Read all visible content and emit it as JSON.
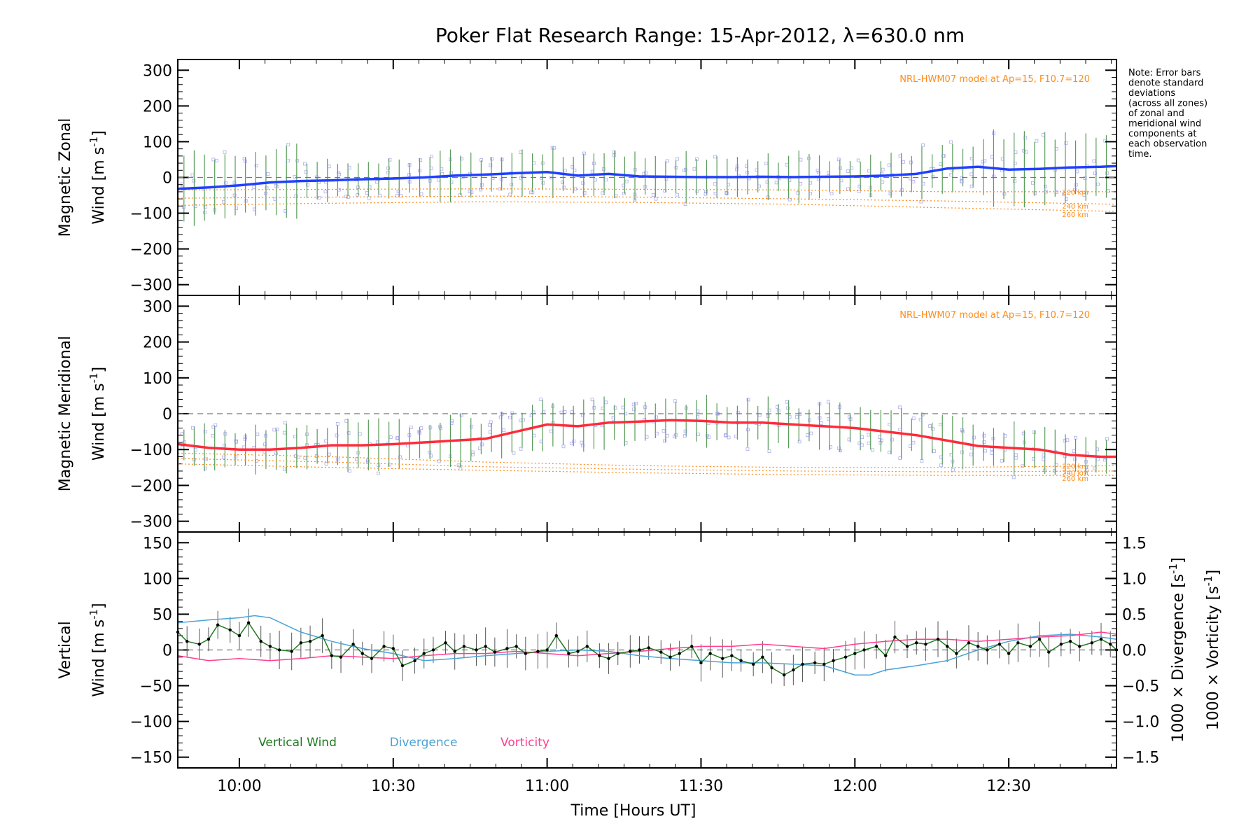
{
  "title": "Poker Flat Research Range: 15-Apr-2012, λ=630.0 nm",
  "note_lines": [
    "Note: Error bars",
    "denote standard",
    "deviations",
    "(across all zones)",
    "of zonal and",
    "meridional wind",
    "components at",
    "each observation",
    "time."
  ],
  "colors": {
    "zonal": "#1f3fff",
    "meridional": "#ff2a3a",
    "vertical": "#1e7a1e",
    "divergence": "#4aa3d6",
    "vorticity": "#ff3f8e",
    "model": "#ff8c1a",
    "zones": "#8a8ae6",
    "errorbar": "#555555"
  },
  "x_axis": {
    "label": "Time [Hours UT]",
    "range_hours": [
      9.8,
      12.85
    ],
    "ticks": [
      10.0,
      10.5,
      11.0,
      11.5,
      12.0,
      12.5
    ],
    "tick_labels": [
      "10:00",
      "10:30",
      "11:00",
      "11:30",
      "12:00",
      "12:30"
    ]
  },
  "panels": {
    "zonal": {
      "ylabel_1": "Magnetic Zonal",
      "ylabel_2": "Wind [m s",
      "ylabel_sup": "-1",
      "ylabel_close": "]",
      "ylim": [
        -330,
        330
      ],
      "ticks": [
        -300,
        -200,
        -100,
        0,
        100,
        200,
        300
      ],
      "tick_labels": [
        "−300",
        "−200",
        "−100",
        "0",
        "100",
        "200",
        "300"
      ],
      "model_note": "NRL-HWM07 model at Ap=15, F10.7=120",
      "altitude_labels": [
        "220 km",
        "240 km",
        "260 km"
      ]
    },
    "meridional": {
      "ylabel_1": "Magnetic Meridional",
      "ylabel_2": "Wind [m s",
      "ylabel_sup": "-1",
      "ylabel_close": "]",
      "ylim": [
        -330,
        330
      ],
      "ticks": [
        -300,
        -200,
        -100,
        0,
        100,
        200,
        300
      ],
      "tick_labels": [
        "−300",
        "−200",
        "−100",
        "0",
        "100",
        "200",
        "300"
      ],
      "model_note": "NRL-HWM07 model at Ap=15, F10.7=120",
      "altitude_labels": [
        "220 km",
        "240 km",
        "260 km"
      ]
    },
    "vertical": {
      "ylabel_1": "Vertical",
      "ylabel_2": "Wind [m s",
      "ylabel_sup": "-1",
      "ylabel_close": "]",
      "ylim": [
        -165,
        165
      ],
      "ticks": [
        -150,
        -100,
        -50,
        0,
        50,
        100,
        150
      ],
      "tick_labels": [
        "−150",
        "−100",
        "−50",
        "0",
        "50",
        "100",
        "150"
      ],
      "right_ylim": [
        -1.65,
        1.65
      ],
      "right_ticks": [
        -1.5,
        -1.0,
        -0.5,
        0.0,
        0.5,
        1.0,
        1.5
      ],
      "right_tick_labels": [
        "−1.5",
        "−1.0",
        "−0.5",
        "0.0",
        "0.5",
        "1.0",
        "1.5"
      ],
      "right_label_div": "1000 × Divergence [s",
      "right_label_vort": "1000 × Vorticity [s",
      "right_label_sup": "-1",
      "right_label_close": "]",
      "legend": [
        "Vertical Wind",
        "Divergence",
        "Vorticity"
      ]
    }
  },
  "chart_data": [
    {
      "type": "line",
      "panel": "zonal",
      "title": "Poker Flat Research Range: 15-Apr-2012, λ=630.0 nm",
      "ylabel": "Magnetic Zonal Wind [m s-1]",
      "xlabel": "",
      "ylim": [
        -330,
        330
      ],
      "series": [
        {
          "kind": "wind",
          "x": [
            9.8,
            9.9,
            10.0,
            10.1,
            10.2,
            10.3,
            10.4,
            10.5,
            10.6,
            10.7,
            10.8,
            10.9,
            11.0,
            11.1,
            11.2,
            11.3,
            11.4,
            11.5,
            11.6,
            11.7,
            11.8,
            11.9,
            12.0,
            12.1,
            12.2,
            12.3,
            12.4,
            12.5,
            12.6,
            12.7,
            12.8,
            12.85
          ],
          "y": [
            -32,
            -28,
            -22,
            -14,
            -10,
            -8,
            -5,
            -3,
            0,
            5,
            8,
            12,
            15,
            5,
            10,
            3,
            2,
            1,
            1,
            2,
            1,
            2,
            3,
            5,
            10,
            25,
            30,
            22,
            24,
            28,
            30,
            32
          ]
        },
        {
          "kind": "model",
          "name": "220 km",
          "x": [
            9.8,
            10.3,
            10.8,
            11.3,
            11.8,
            12.3,
            12.85
          ],
          "y": [
            -35,
            -33,
            -32,
            -33,
            -35,
            -40,
            -40
          ]
        },
        {
          "kind": "model",
          "name": "240 km",
          "x": [
            9.8,
            10.3,
            10.8,
            11.3,
            11.8,
            12.3,
            12.85
          ],
          "y": [
            -58,
            -55,
            -52,
            -55,
            -60,
            -66,
            -75
          ]
        },
        {
          "kind": "model",
          "name": "260 km",
          "x": [
            9.8,
            10.3,
            10.8,
            11.3,
            11.8,
            12.3,
            12.85
          ],
          "y": [
            -78,
            -72,
            -68,
            -70,
            -75,
            -85,
            -95
          ]
        }
      ]
    },
    {
      "type": "line",
      "panel": "meridional",
      "title": "",
      "ylabel": "Magnetic Meridional Wind [m s-1]",
      "xlabel": "",
      "ylim": [
        -330,
        330
      ],
      "series": [
        {
          "kind": "wind",
          "x": [
            9.8,
            9.9,
            10.0,
            10.1,
            10.2,
            10.3,
            10.4,
            10.5,
            10.6,
            10.7,
            10.8,
            10.9,
            11.0,
            11.1,
            11.2,
            11.3,
            11.4,
            11.5,
            11.6,
            11.7,
            11.8,
            11.9,
            12.0,
            12.1,
            12.2,
            12.3,
            12.4,
            12.5,
            12.6,
            12.7,
            12.8,
            12.85
          ],
          "y": [
            -85,
            -95,
            -100,
            -100,
            -95,
            -88,
            -88,
            -85,
            -80,
            -75,
            -70,
            -50,
            -30,
            -35,
            -25,
            -22,
            -18,
            -20,
            -25,
            -25,
            -30,
            -35,
            -40,
            -50,
            -60,
            -75,
            -90,
            -95,
            -100,
            -115,
            -120,
            -120
          ]
        },
        {
          "kind": "model",
          "name": "220 km",
          "x": [
            9.8,
            10.3,
            10.8,
            11.3,
            11.8,
            12.3,
            12.85
          ],
          "y": [
            -110,
            -120,
            -135,
            -145,
            -150,
            -150,
            -145
          ]
        },
        {
          "kind": "model",
          "name": "240 km",
          "x": [
            9.8,
            10.3,
            10.8,
            11.3,
            11.8,
            12.3,
            12.85
          ],
          "y": [
            -125,
            -135,
            -148,
            -155,
            -160,
            -162,
            -160
          ]
        },
        {
          "kind": "model",
          "name": "260 km",
          "x": [
            9.8,
            10.3,
            10.8,
            11.3,
            11.8,
            12.3,
            12.85
          ],
          "y": [
            -140,
            -150,
            -158,
            -165,
            -170,
            -172,
            -172
          ]
        }
      ]
    },
    {
      "type": "line",
      "panel": "vertical",
      "title": "",
      "ylabel": "Vertical Wind [m s-1]",
      "xlabel": "Time [Hours UT]",
      "ylim": [
        -165,
        165
      ],
      "series": [
        {
          "name": "Vertical Wind",
          "axis": "left",
          "x": [
            9.8,
            9.83,
            9.87,
            9.9,
            9.93,
            9.97,
            10.0,
            10.03,
            10.07,
            10.1,
            10.13,
            10.17,
            10.2,
            10.23,
            10.27,
            10.3,
            10.33,
            10.37,
            10.4,
            10.43,
            10.47,
            10.5,
            10.53,
            10.57,
            10.6,
            10.63,
            10.67,
            10.7,
            10.73,
            10.77,
            10.8,
            10.83,
            10.87,
            10.9,
            10.93,
            10.97,
            11.0,
            11.03,
            11.07,
            11.1,
            11.13,
            11.17,
            11.2,
            11.23,
            11.27,
            11.3,
            11.33,
            11.37,
            11.4,
            11.43,
            11.47,
            11.5,
            11.53,
            11.57,
            11.6,
            11.63,
            11.67,
            11.7,
            11.73,
            11.77,
            11.8,
            11.83,
            11.87,
            11.9,
            11.93,
            11.97,
            12.0,
            12.03,
            12.07,
            12.1,
            12.13,
            12.17,
            12.2,
            12.23,
            12.27,
            12.3,
            12.33,
            12.37,
            12.4,
            12.43,
            12.47,
            12.5,
            12.53,
            12.57,
            12.6,
            12.63,
            12.67,
            12.7,
            12.73,
            12.77,
            12.8,
            12.83,
            12.85
          ],
          "y": [
            25,
            12,
            8,
            15,
            35,
            28,
            20,
            38,
            12,
            5,
            0,
            -2,
            10,
            12,
            20,
            -8,
            -10,
            8,
            -5,
            -12,
            5,
            2,
            -22,
            -15,
            -5,
            0,
            10,
            -2,
            5,
            0,
            5,
            -3,
            2,
            5,
            -5,
            -2,
            0,
            20,
            -5,
            -2,
            5,
            -8,
            -12,
            -5,
            -2,
            0,
            3,
            -3,
            -10,
            -5,
            5,
            -18,
            -5,
            -12,
            -8,
            -15,
            -20,
            -10,
            -25,
            -35,
            -28,
            -20,
            -18,
            -20,
            -15,
            -10,
            -5,
            0,
            5,
            -8,
            18,
            5,
            10,
            8,
            15,
            5,
            -5,
            10,
            5,
            0,
            8,
            -5,
            10,
            5,
            15,
            -3,
            8,
            12,
            5,
            10,
            15,
            8,
            0
          ]
        },
        {
          "name": "Divergence",
          "axis": "right",
          "x": [
            9.8,
            9.9,
            10.0,
            10.05,
            10.1,
            10.15,
            10.2,
            10.3,
            10.4,
            10.5,
            10.6,
            10.7,
            10.8,
            10.9,
            11.0,
            11.1,
            11.2,
            11.3,
            11.4,
            11.5,
            11.6,
            11.7,
            11.8,
            11.9,
            12.0,
            12.05,
            12.1,
            12.2,
            12.3,
            12.4,
            12.5,
            12.6,
            12.7,
            12.8,
            12.85
          ],
          "y": [
            0.38,
            0.42,
            0.45,
            0.48,
            0.45,
            0.35,
            0.25,
            0.12,
            0.02,
            -0.05,
            -0.15,
            -0.12,
            -0.08,
            -0.05,
            -0.02,
            0.0,
            -0.02,
            -0.08,
            -0.12,
            -0.15,
            -0.18,
            -0.18,
            -0.2,
            -0.22,
            -0.35,
            -0.35,
            -0.28,
            -0.22,
            -0.15,
            0.0,
            0.12,
            0.2,
            0.22,
            0.18,
            0.15
          ]
        },
        {
          "name": "Vorticity",
          "axis": "right",
          "x": [
            9.8,
            9.9,
            10.0,
            10.1,
            10.2,
            10.3,
            10.4,
            10.5,
            10.6,
            10.7,
            10.8,
            10.9,
            11.0,
            11.1,
            11.2,
            11.3,
            11.4,
            11.5,
            11.6,
            11.7,
            11.8,
            11.9,
            12.0,
            12.1,
            12.2,
            12.3,
            12.4,
            12.5,
            12.6,
            12.7,
            12.8,
            12.85
          ],
          "y": [
            -0.08,
            -0.15,
            -0.12,
            -0.15,
            -0.12,
            -0.08,
            -0.1,
            -0.12,
            -0.08,
            -0.05,
            -0.05,
            -0.02,
            -0.05,
            -0.08,
            -0.05,
            -0.02,
            0.02,
            0.05,
            0.05,
            0.08,
            0.05,
            0.02,
            0.08,
            0.12,
            0.15,
            0.15,
            0.12,
            0.15,
            0.18,
            0.2,
            0.25,
            0.22
          ]
        }
      ]
    }
  ]
}
